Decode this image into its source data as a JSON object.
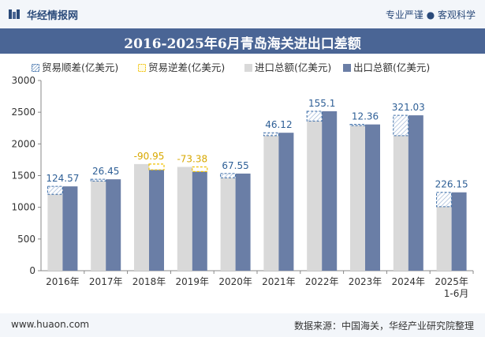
{
  "header": {
    "brand": "华经情报网",
    "tagline": "专业严谨 ● 客观科学"
  },
  "footer": {
    "website": "www.huaon.com",
    "source": "数据来源：中国海关，华经产业研究院整理"
  },
  "colors": {
    "surplus": "#3c6ea8",
    "deficit": "#f0c000",
    "imports": "#d9d9d9",
    "exports": "#6a7ea6",
    "titlebar": "#4a6595"
  },
  "chart_data": {
    "type": "bar",
    "title": "2016-2025年6月青岛海关进出口差额",
    "legend": [
      "贸易顺差(亿美元)",
      "贸易逆差(亿美元)",
      "进口总额(亿美元)",
      "出口总额(亿美元)"
    ],
    "categories": [
      "2016年",
      "2017年",
      "2018年",
      "2019年",
      "2020年",
      "2021年",
      "2022年",
      "2023年",
      "2024年",
      "2025年\n1-6月"
    ],
    "series": [
      {
        "name": "进口总额(亿美元)",
        "values": [
          1205,
          1415,
          1682,
          1637,
          1465,
          2130,
          2360,
          2295,
          2130,
          1010
        ]
      },
      {
        "name": "出口总额(亿美元)",
        "values": [
          1330,
          1442,
          1591,
          1564,
          1532,
          2176,
          2515,
          2307,
          2451,
          1236
        ]
      }
    ],
    "balance_labels": [
      "124.57",
      "26.45",
      "-90.95",
      "-73.38",
      "67.55",
      "46.12",
      "155.1",
      "12.36",
      "321.03",
      "226.15"
    ],
    "balance_values": [
      124.57,
      26.45,
      -90.95,
      -73.38,
      67.55,
      46.12,
      155.1,
      12.36,
      321.03,
      226.15
    ],
    "ylim": [
      0,
      3000
    ],
    "yticks": [
      0,
      500,
      1000,
      1500,
      2000,
      2500,
      3000
    ],
    "xlabel": "",
    "ylabel": ""
  }
}
